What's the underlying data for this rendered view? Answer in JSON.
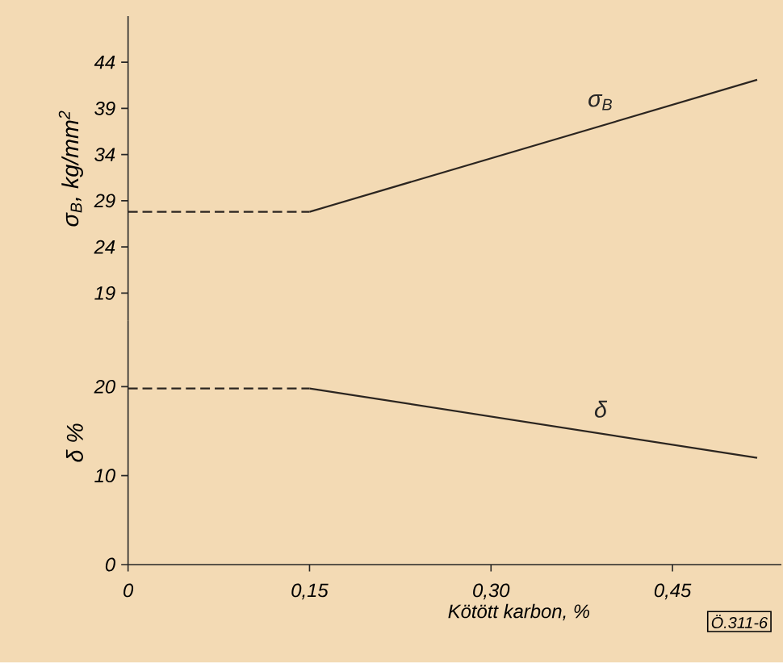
{
  "chart_data": [
    {
      "type": "line",
      "ylabel": "σ$_{B}$, kg/mm$^{2}$",
      "xlim": [
        0,
        0.54
      ],
      "ylim": [
        16,
        49
      ],
      "yticks": [
        19,
        24,
        29,
        34,
        39,
        44
      ],
      "tick_labels": "y",
      "series": [
        {
          "color": "#2b2520",
          "line_style": "dashed",
          "x": [
            0,
            0.15
          ],
          "values": [
            27.8,
            27.8
          ]
        },
        {
          "name": "σ$_{B}$",
          "color": "#2b2520",
          "line_style": "solid",
          "x": [
            0.15,
            0.52
          ],
          "values": [
            27.8,
            42.1
          ]
        }
      ]
    },
    {
      "type": "line",
      "xlabel": "Kötött karbon, %",
      "ylabel": "δ %",
      "xlim": [
        0,
        0.54
      ],
      "ylim": [
        0,
        27.4
      ],
      "xticks": [
        0,
        {
          "value": 0.15,
          "label": "0,15"
        },
        {
          "value": 0.3,
          "label": "0,30"
        },
        {
          "value": 0.45,
          "label": "0,45"
        }
      ],
      "yticks": [
        0,
        10,
        20
      ],
      "annotations": [
        "Ö.311-6"
      ],
      "series": [
        {
          "color": "#2b2520",
          "line_style": "dashed",
          "x": [
            0,
            0.15
          ],
          "values": [
            19.8,
            19.8
          ]
        },
        {
          "name": "δ",
          "color": "#2b2520",
          "line_style": "solid",
          "x": [
            0.15,
            0.52
          ],
          "values": [
            19.8,
            12
          ]
        }
      ]
    }
  ]
}
